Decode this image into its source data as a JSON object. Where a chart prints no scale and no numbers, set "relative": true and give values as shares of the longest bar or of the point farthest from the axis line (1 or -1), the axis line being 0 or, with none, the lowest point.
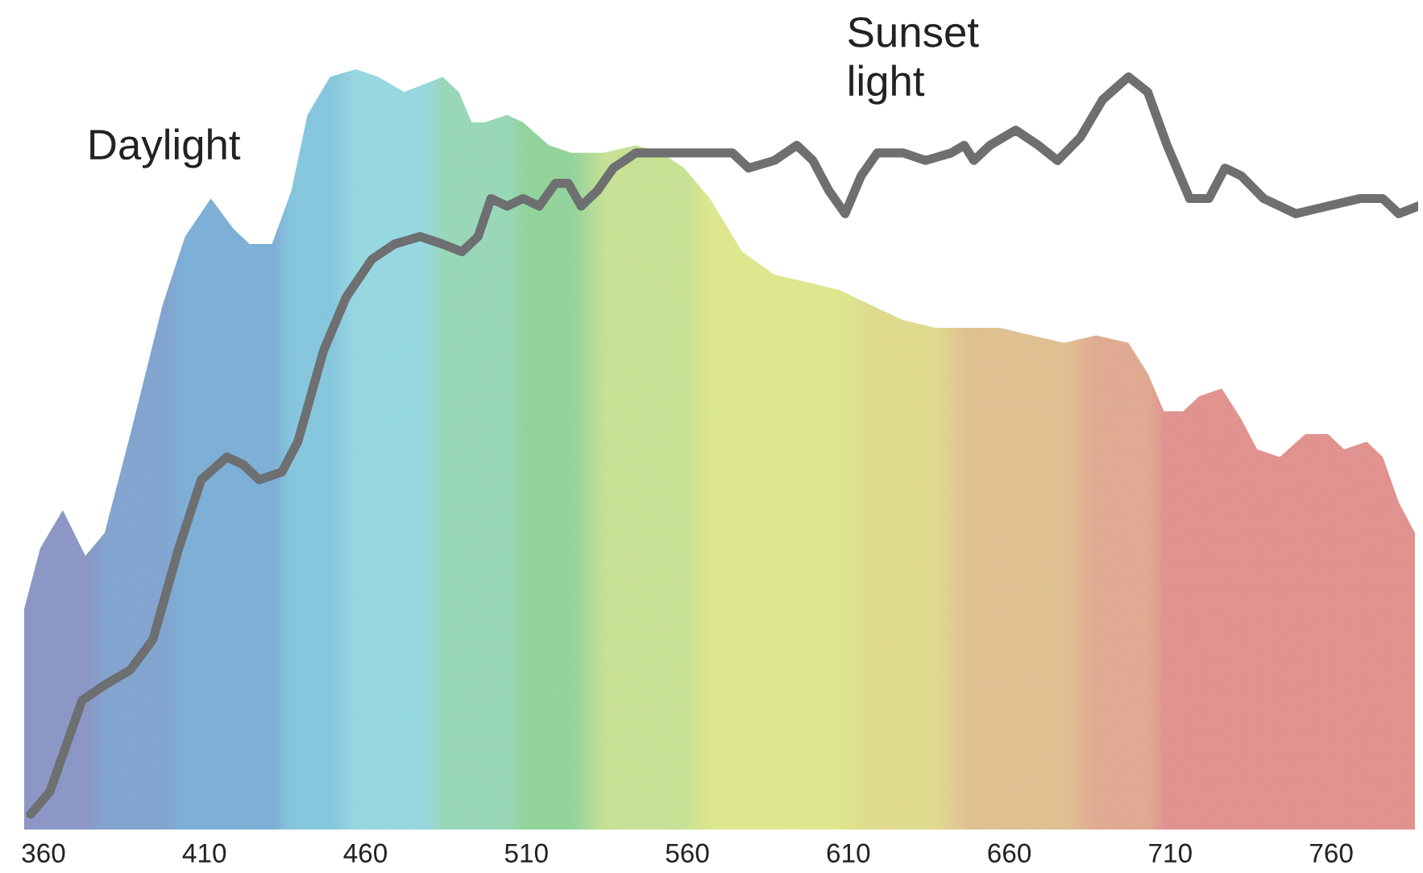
{
  "chart_data": {
    "type": "area",
    "relative": true,
    "xlim": [
      354,
      787
    ],
    "xticks": [
      360,
      410,
      460,
      510,
      560,
      610,
      660,
      710,
      760
    ],
    "grid": false,
    "legend": false,
    "series": [
      {
        "name": "Daylight",
        "color": "#98d9e0",
        "x": [
          354,
          359,
          366,
          373,
          379,
          387,
          397,
          404,
          412,
          419,
          424,
          431,
          437,
          442,
          449,
          457,
          464,
          472,
          478,
          484,
          489,
          493,
          497,
          504,
          509,
          517,
          524,
          534,
          544,
          552,
          559,
          567,
          577,
          587,
          597,
          607,
          617,
          627,
          637,
          647,
          657,
          667,
          677,
          687,
          697,
          703,
          708,
          714,
          719,
          726,
          732,
          737,
          744,
          752,
          759,
          764,
          771,
          776,
          781,
          786
        ],
        "values": [
          0.29,
          0.37,
          0.42,
          0.36,
          0.39,
          0.52,
          0.69,
          0.78,
          0.83,
          0.79,
          0.77,
          0.77,
          0.84,
          0.94,
          0.99,
          1.0,
          0.99,
          0.97,
          0.98,
          0.99,
          0.97,
          0.93,
          0.93,
          0.94,
          0.93,
          0.9,
          0.89,
          0.89,
          0.9,
          0.89,
          0.87,
          0.83,
          0.76,
          0.73,
          0.72,
          0.71,
          0.69,
          0.67,
          0.66,
          0.66,
          0.66,
          0.65,
          0.64,
          0.65,
          0.64,
          0.6,
          0.55,
          0.55,
          0.57,
          0.58,
          0.54,
          0.5,
          0.49,
          0.52,
          0.52,
          0.5,
          0.51,
          0.49,
          0.43,
          0.39
        ],
        "colors": [
          "#8b88c0",
          "#8b88c0",
          "#8b88c0",
          "#8b88c0",
          "#7f99cc",
          "#7f99cc",
          "#7f99cc",
          "#79a6d4",
          "#79a6d4",
          "#79a6d4",
          "#79a6d4",
          "#79a6d4",
          "#84c3dd",
          "#84c3dd",
          "#84c3dd",
          "#98d9e0",
          "#98d9e0",
          "#98d9e0",
          "#98d9e0",
          "#9bd8b0",
          "#9bd8b0",
          "#9bd8b0",
          "#9bd8b0",
          "#9bd8b0",
          "#93d48a",
          "#93d48a",
          "#93d48a",
          "#d4e483",
          "#d4e483",
          "#d4e483",
          "#d4e483",
          "#f0ec79",
          "#f0ec79",
          "#f0ec79",
          "#f0ec79",
          "#f0ec79",
          "#f2dc7b",
          "#f2dc7b",
          "#f2dc7b",
          "#f2bc7f",
          "#f2bc7f",
          "#f2bc7f",
          "#f2bc7f",
          "#f3a07f",
          "#f3a07f",
          "#f3a07f",
          "#f4827c",
          "#f4827c",
          "#f4827c",
          "#f4827c",
          "#f4827c",
          "#f4827c",
          "#f4827c",
          "#f4827c",
          "#f4827c",
          "#f4827c",
          "#f4827c",
          "#f4827c",
          "#f4827c",
          "#f4827c"
        ]
      },
      {
        "name": "Sunset\nlight",
        "type": "line",
        "color": "#6d6f71",
        "x": [
          356,
          362,
          367,
          372,
          379,
          387,
          394,
          402,
          409,
          417,
          422,
          427,
          434,
          439,
          447,
          454,
          462,
          469,
          477,
          484,
          490,
          495,
          499,
          504,
          509,
          514,
          519,
          523,
          527,
          532,
          537,
          544,
          557,
          567,
          574,
          579,
          587,
          594,
          599,
          604,
          609,
          614,
          619,
          627,
          634,
          642,
          646,
          649,
          654,
          662,
          669,
          675,
          682,
          689,
          697,
          703,
          709,
          716,
          722,
          727,
          732,
          739,
          749,
          759,
          769,
          776,
          781,
          787
        ],
        "values": [
          0.02,
          0.05,
          0.11,
          0.17,
          0.19,
          0.21,
          0.25,
          0.37,
          0.46,
          0.49,
          0.48,
          0.46,
          0.47,
          0.51,
          0.63,
          0.7,
          0.75,
          0.77,
          0.78,
          0.77,
          0.76,
          0.78,
          0.83,
          0.82,
          0.83,
          0.82,
          0.85,
          0.85,
          0.82,
          0.84,
          0.87,
          0.89,
          0.89,
          0.89,
          0.89,
          0.87,
          0.88,
          0.9,
          0.88,
          0.84,
          0.81,
          0.86,
          0.89,
          0.89,
          0.88,
          0.89,
          0.9,
          0.88,
          0.9,
          0.92,
          0.9,
          0.88,
          0.91,
          0.96,
          0.99,
          0.97,
          0.9,
          0.83,
          0.83,
          0.87,
          0.86,
          0.83,
          0.81,
          0.82,
          0.83,
          0.83,
          0.81,
          0.82
        ]
      }
    ]
  }
}
